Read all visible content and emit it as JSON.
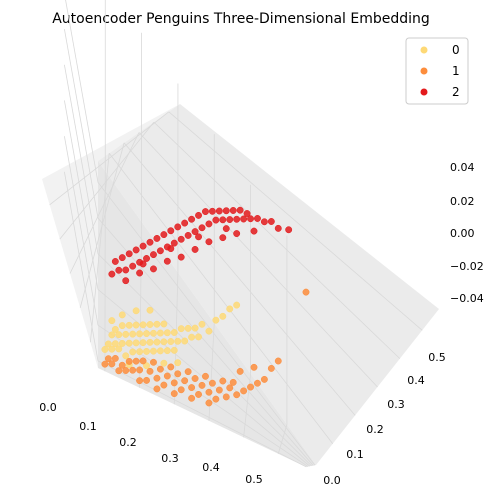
{
  "chart_data": {
    "type": "scatter",
    "projection": "3d",
    "title": "Autoencoder Penguins Three-Dimensional Embedding",
    "x_ticks": [
      "0.0",
      "0.1",
      "0.2",
      "0.3",
      "0.4",
      "0.5"
    ],
    "y_ticks": [
      "0.0",
      "0.1",
      "0.2",
      "0.3",
      "0.4",
      "0.5"
    ],
    "z_ticks": [
      "0.04",
      "0.02",
      "0.00",
      "−0.02",
      "−0.04"
    ],
    "xlim": [
      -0.02,
      0.58
    ],
    "ylim": [
      -0.02,
      0.56
    ],
    "zlim": [
      -0.055,
      0.055
    ],
    "grid": true,
    "legend_position": "top-right",
    "series": [
      {
        "name": "0",
        "color": "#fed976",
        "points": [
          [
            0.0,
            0.03,
            0
          ],
          [
            0.01,
            0.05,
            0
          ],
          [
            0.02,
            0.04,
            0
          ],
          [
            0.02,
            0.08,
            0
          ],
          [
            0.03,
            0.06,
            0
          ],
          [
            0.03,
            0.1,
            0
          ],
          [
            0.04,
            0.05,
            0
          ],
          [
            0.04,
            0.09,
            0
          ],
          [
            0.05,
            0.07,
            0
          ],
          [
            0.05,
            0.12,
            0
          ],
          [
            0.06,
            0.04,
            0
          ],
          [
            0.06,
            0.1,
            0
          ],
          [
            0.07,
            0.08,
            0
          ],
          [
            0.07,
            0.13,
            0
          ],
          [
            0.08,
            0.06,
            0
          ],
          [
            0.08,
            0.11,
            0
          ],
          [
            0.09,
            0.09,
            0
          ],
          [
            0.09,
            0.14,
            0
          ],
          [
            0.1,
            0.07,
            0
          ],
          [
            0.1,
            0.12,
            0
          ],
          [
            0.11,
            0.1,
            0
          ],
          [
            0.11,
            0.15,
            0
          ],
          [
            0.12,
            0.08,
            0
          ],
          [
            0.12,
            0.13,
            0
          ],
          [
            0.13,
            0.11,
            0
          ],
          [
            0.13,
            0.16,
            0
          ],
          [
            0.14,
            0.09,
            0
          ],
          [
            0.14,
            0.14,
            0
          ],
          [
            0.15,
            0.12,
            0
          ],
          [
            0.15,
            0.17,
            0
          ],
          [
            0.16,
            0.1,
            0
          ],
          [
            0.16,
            0.15,
            0
          ],
          [
            0.17,
            0.13,
            0
          ],
          [
            0.17,
            0.18,
            0
          ],
          [
            0.18,
            0.11,
            0
          ],
          [
            0.18,
            0.16,
            0
          ],
          [
            0.19,
            0.14,
            0
          ],
          [
            0.2,
            0.12,
            0
          ],
          [
            0.2,
            0.17,
            0
          ],
          [
            0.21,
            0.15,
            0
          ],
          [
            0.22,
            0.19,
            0
          ],
          [
            0.23,
            0.16,
            0
          ],
          [
            0.24,
            0.2,
            0
          ],
          [
            0.25,
            0.18,
            0
          ],
          [
            0.26,
            0.21,
            0
          ],
          [
            0.27,
            0.19,
            0
          ],
          [
            0.28,
            0.23,
            0
          ],
          [
            0.3,
            0.22,
            0
          ],
          [
            0.32,
            0.26,
            0
          ],
          [
            0.34,
            0.28,
            0
          ],
          [
            0.05,
            0.15,
            0
          ],
          [
            0.09,
            0.18,
            0
          ],
          [
            0.13,
            0.2,
            0
          ],
          [
            0.02,
            0.12,
            0
          ],
          [
            0.36,
            0.31,
            0
          ],
          [
            0.38,
            0.33,
            0
          ],
          [
            0.07,
            0.02,
            0
          ],
          [
            0.12,
            0.04,
            0
          ],
          [
            0.17,
            0.07,
            0
          ],
          [
            0.21,
            0.09,
            0
          ]
        ]
      },
      {
        "name": "1",
        "color": "#fd8d3c",
        "points": [
          [
            0.0,
            0.0,
            0
          ],
          [
            0.01,
            0.02,
            0
          ],
          [
            0.02,
            0.01,
            0
          ],
          [
            0.03,
            0.03,
            0
          ],
          [
            0.04,
            0.0,
            0
          ],
          [
            0.05,
            0.02,
            0
          ],
          [
            0.06,
            0.01,
            0
          ],
          [
            0.07,
            0.04,
            0
          ],
          [
            0.08,
            0.02,
            0
          ],
          [
            0.09,
            0.05,
            0
          ],
          [
            0.1,
            0.03,
            0
          ],
          [
            0.11,
            0.06,
            0
          ],
          [
            0.12,
            0.01,
            0
          ],
          [
            0.13,
            0.04,
            0
          ],
          [
            0.14,
            0.07,
            0
          ],
          [
            0.15,
            0.03,
            0
          ],
          [
            0.16,
            0.06,
            0
          ],
          [
            0.17,
            0.02,
            0
          ],
          [
            0.18,
            0.05,
            0
          ],
          [
            0.19,
            0.08,
            0
          ],
          [
            0.2,
            0.04,
            0
          ],
          [
            0.21,
            0.07,
            0
          ],
          [
            0.22,
            0.03,
            0
          ],
          [
            0.23,
            0.06,
            0
          ],
          [
            0.24,
            0.09,
            0
          ],
          [
            0.25,
            0.05,
            0
          ],
          [
            0.26,
            0.08,
            0
          ],
          [
            0.27,
            0.04,
            0
          ],
          [
            0.28,
            0.07,
            0
          ],
          [
            0.29,
            0.1,
            0
          ],
          [
            0.3,
            0.06,
            0
          ],
          [
            0.31,
            0.09,
            0
          ],
          [
            0.32,
            0.05,
            0
          ],
          [
            0.33,
            0.08,
            0
          ],
          [
            0.34,
            0.11,
            0
          ],
          [
            0.35,
            0.07,
            0
          ],
          [
            0.36,
            0.1,
            0
          ],
          [
            0.37,
            0.12,
            0
          ],
          [
            0.38,
            0.09,
            0
          ],
          [
            0.4,
            0.11,
            0
          ],
          [
            0.42,
            0.13,
            0
          ],
          [
            0.44,
            0.15,
            0
          ],
          [
            0.46,
            0.17,
            0
          ],
          [
            0.1,
            0.0,
            0
          ],
          [
            0.15,
            0.0,
            0
          ],
          [
            0.2,
            0.01,
            0
          ],
          [
            0.25,
            0.02,
            0
          ],
          [
            0.3,
            0.03,
            0
          ],
          [
            0.39,
            0.16,
            0
          ],
          [
            0.43,
            0.19,
            0
          ],
          [
            0.48,
            0.21,
            0
          ],
          [
            0.5,
            0.24,
            0
          ],
          [
            0.58,
            0.47,
            0
          ]
        ]
      },
      {
        "name": "2",
        "color": "#e31a1c",
        "points": [
          [
            0.02,
            0.2,
            0
          ],
          [
            0.03,
            0.24,
            0
          ],
          [
            0.04,
            0.22,
            0
          ],
          [
            0.05,
            0.26,
            0
          ],
          [
            0.06,
            0.23,
            0
          ],
          [
            0.07,
            0.28,
            0
          ],
          [
            0.08,
            0.25,
            0
          ],
          [
            0.09,
            0.3,
            0
          ],
          [
            0.1,
            0.27,
            0
          ],
          [
            0.11,
            0.32,
            0
          ],
          [
            0.12,
            0.29,
            0
          ],
          [
            0.13,
            0.34,
            0
          ],
          [
            0.14,
            0.31,
            0
          ],
          [
            0.15,
            0.36,
            0
          ],
          [
            0.16,
            0.33,
            0
          ],
          [
            0.17,
            0.38,
            0
          ],
          [
            0.18,
            0.35,
            0
          ],
          [
            0.19,
            0.4,
            0
          ],
          [
            0.2,
            0.37,
            0
          ],
          [
            0.21,
            0.42,
            0
          ],
          [
            0.22,
            0.39,
            0
          ],
          [
            0.23,
            0.44,
            0
          ],
          [
            0.24,
            0.41,
            0
          ],
          [
            0.25,
            0.46,
            0
          ],
          [
            0.26,
            0.43,
            0
          ],
          [
            0.27,
            0.48,
            0
          ],
          [
            0.28,
            0.45,
            0
          ],
          [
            0.29,
            0.5,
            0
          ],
          [
            0.3,
            0.47,
            0
          ],
          [
            0.31,
            0.51,
            0
          ],
          [
            0.32,
            0.49,
            0
          ],
          [
            0.33,
            0.52,
            0
          ],
          [
            0.34,
            0.5,
            0
          ],
          [
            0.35,
            0.53,
            0
          ],
          [
            0.36,
            0.51,
            0
          ],
          [
            0.37,
            0.54,
            0
          ],
          [
            0.38,
            0.52,
            0
          ],
          [
            0.39,
            0.55,
            0
          ],
          [
            0.4,
            0.53,
            0
          ],
          [
            0.41,
            0.55,
            0
          ],
          [
            0.42,
            0.54,
            0
          ],
          [
            0.44,
            0.55,
            0
          ],
          [
            0.46,
            0.55,
            0
          ],
          [
            0.48,
            0.56,
            0
          ],
          [
            0.5,
            0.55,
            0
          ],
          [
            0.53,
            0.56,
            0
          ],
          [
            0.06,
            0.2,
            0
          ],
          [
            0.1,
            0.24,
            0
          ],
          [
            0.14,
            0.27,
            0
          ],
          [
            0.18,
            0.31,
            0
          ],
          [
            0.22,
            0.34,
            0
          ],
          [
            0.26,
            0.38,
            0
          ],
          [
            0.3,
            0.42,
            0
          ],
          [
            0.34,
            0.45,
            0
          ],
          [
            0.38,
            0.48,
            0
          ],
          [
            0.11,
            0.27,
            0
          ],
          [
            0.19,
            0.35,
            0
          ],
          [
            0.27,
            0.42,
            0
          ],
          [
            0.35,
            0.48,
            0
          ],
          [
            0.43,
            0.51,
            0
          ]
        ]
      }
    ]
  }
}
